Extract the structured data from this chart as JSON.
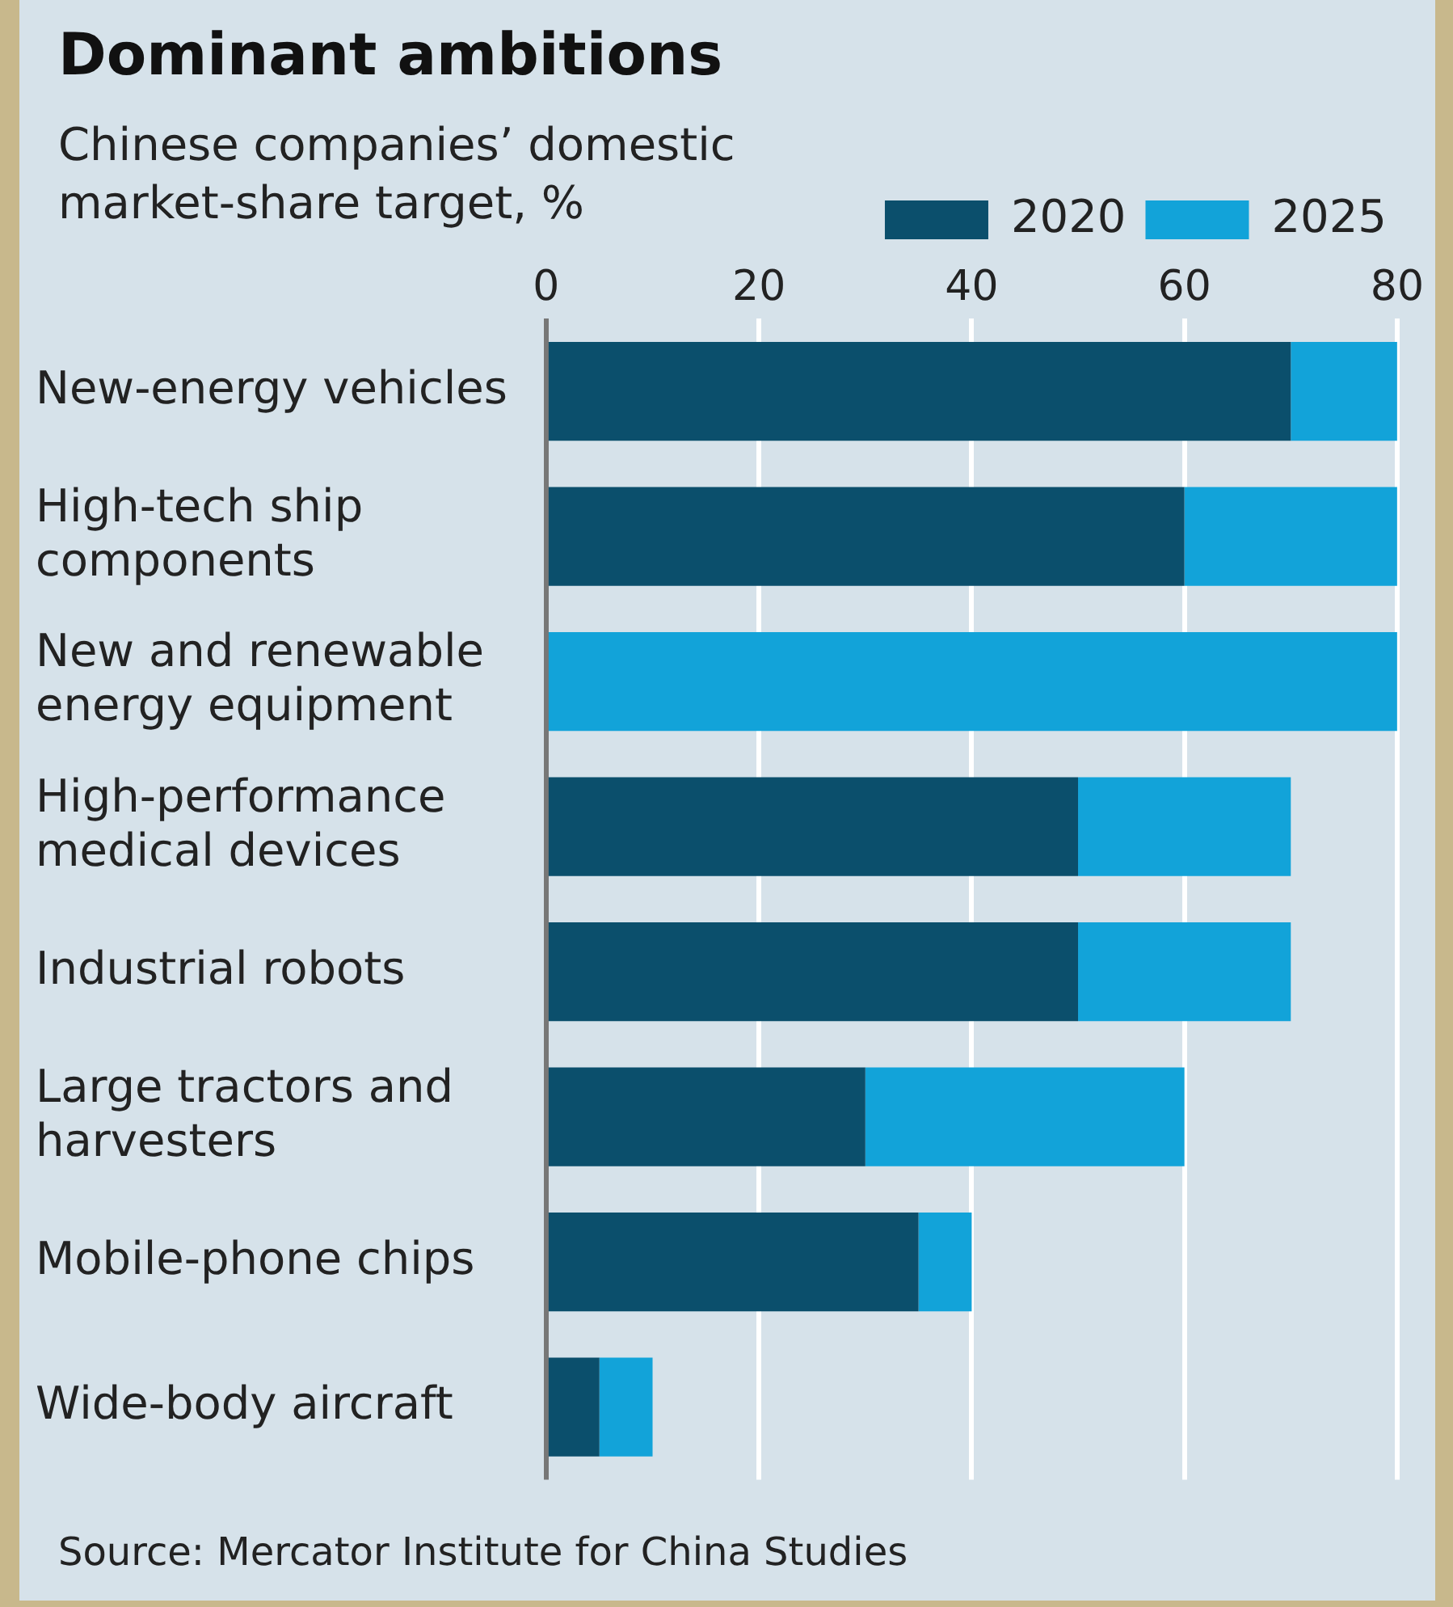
{
  "chart_data": {
    "type": "bar",
    "orientation": "horizontal",
    "stacked": true,
    "title": "Dominant ambitions",
    "subtitle": "Chinese companies’ domestic market-share target, %",
    "categories": [
      "New-energy vehicles",
      "High-tech ship components",
      "New and renewable energy equipment",
      "High-performance medical devices",
      "Industrial robots",
      "Large tractors and harvesters",
      "Mobile-phone chips",
      "Wide-body aircraft"
    ],
    "series": [
      {
        "name": "2020",
        "color": "#0b4f6c",
        "values": [
          70,
          60,
          null,
          50,
          50,
          30,
          35,
          5
        ]
      },
      {
        "name": "2025",
        "color": "#12a3d9",
        "values": [
          10,
          20,
          80,
          20,
          20,
          30,
          5,
          5
        ]
      }
    ],
    "xlim": [
      0,
      80
    ],
    "xticks": [
      0,
      20,
      40,
      60,
      80
    ],
    "grid": "x",
    "legend": "top right",
    "annotations": [
      "Source: Mercator Institute for China Studies"
    ]
  }
}
